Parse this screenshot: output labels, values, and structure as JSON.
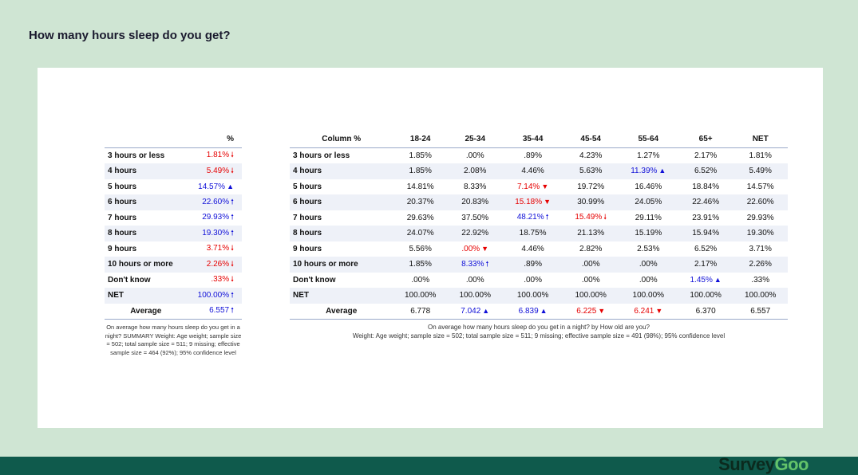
{
  "title": "How many hours sleep do you get?",
  "logo": {
    "part1": "Survey",
    "part2": "Goo"
  },
  "summary": {
    "col_header": "%",
    "rows": [
      {
        "label": "3 hours or less",
        "value": "1.81%",
        "dir": "down",
        "arrow": "long"
      },
      {
        "label": "4 hours",
        "value": "5.49%",
        "dir": "down",
        "arrow": "long"
      },
      {
        "label": "5 hours",
        "value": "14.57%",
        "dir": "up",
        "arrow": "small"
      },
      {
        "label": "6 hours",
        "value": "22.60%",
        "dir": "up",
        "arrow": "long"
      },
      {
        "label": "7 hours",
        "value": "29.93%",
        "dir": "up",
        "arrow": "long"
      },
      {
        "label": "8 hours",
        "value": "19.30%",
        "dir": "up",
        "arrow": "long"
      },
      {
        "label": "9 hours",
        "value": "3.71%",
        "dir": "down",
        "arrow": "long"
      },
      {
        "label": "10 hours or more",
        "value": "2.26%",
        "dir": "down",
        "arrow": "long"
      },
      {
        "label": "Don't know",
        "value": ".33%",
        "dir": "down",
        "arrow": "long"
      },
      {
        "label": "NET",
        "value": "100.00%",
        "dir": "up",
        "arrow": "long"
      }
    ],
    "average": {
      "label": "Average",
      "value": "6.557",
      "dir": "up",
      "arrow": "long"
    },
    "note": "On average how many hours sleep do you get in a night? SUMMARY Weight: Age weight; sample size = 502; total sample size = 511; 9 missing; effective sample size = 464 (92%); 95% confidence level"
  },
  "crosstab": {
    "corner": "Column %",
    "columns": [
      "18-24",
      "25-34",
      "35-44",
      "45-54",
      "55-64",
      "65+",
      "NET"
    ],
    "rows": [
      {
        "label": "3 hours or less",
        "cells": [
          {
            "v": "1.85%"
          },
          {
            "v": ".00%"
          },
          {
            "v": ".89%"
          },
          {
            "v": "4.23%"
          },
          {
            "v": "1.27%"
          },
          {
            "v": "2.17%"
          },
          {
            "v": "1.81%"
          }
        ]
      },
      {
        "label": "4 hours",
        "cells": [
          {
            "v": "1.85%"
          },
          {
            "v": "2.08%"
          },
          {
            "v": "4.46%"
          },
          {
            "v": "5.63%"
          },
          {
            "v": "11.39%",
            "dir": "up",
            "arrow": "small"
          },
          {
            "v": "6.52%"
          },
          {
            "v": "5.49%"
          }
        ]
      },
      {
        "label": "5 hours",
        "cells": [
          {
            "v": "14.81%"
          },
          {
            "v": "8.33%"
          },
          {
            "v": "7.14%",
            "dir": "down",
            "arrow": "small"
          },
          {
            "v": "19.72%"
          },
          {
            "v": "16.46%"
          },
          {
            "v": "18.84%"
          },
          {
            "v": "14.57%"
          }
        ]
      },
      {
        "label": "6 hours",
        "cells": [
          {
            "v": "20.37%"
          },
          {
            "v": "20.83%"
          },
          {
            "v": "15.18%",
            "dir": "down",
            "arrow": "small"
          },
          {
            "v": "30.99%"
          },
          {
            "v": "24.05%"
          },
          {
            "v": "22.46%"
          },
          {
            "v": "22.60%"
          }
        ]
      },
      {
        "label": "7 hours",
        "cells": [
          {
            "v": "29.63%"
          },
          {
            "v": "37.50%"
          },
          {
            "v": "48.21%",
            "dir": "up",
            "arrow": "long"
          },
          {
            "v": "15.49%",
            "dir": "down",
            "arrow": "long"
          },
          {
            "v": "29.11%"
          },
          {
            "v": "23.91%"
          },
          {
            "v": "29.93%"
          }
        ]
      },
      {
        "label": "8 hours",
        "cells": [
          {
            "v": "24.07%"
          },
          {
            "v": "22.92%"
          },
          {
            "v": "18.75%"
          },
          {
            "v": "21.13%"
          },
          {
            "v": "15.19%"
          },
          {
            "v": "15.94%"
          },
          {
            "v": "19.30%"
          }
        ]
      },
      {
        "label": "9 hours",
        "cells": [
          {
            "v": "5.56%"
          },
          {
            "v": ".00%",
            "dir": "down",
            "arrow": "small"
          },
          {
            "v": "4.46%"
          },
          {
            "v": "2.82%"
          },
          {
            "v": "2.53%"
          },
          {
            "v": "6.52%"
          },
          {
            "v": "3.71%"
          }
        ]
      },
      {
        "label": "10 hours or more",
        "cells": [
          {
            "v": "1.85%"
          },
          {
            "v": "8.33%",
            "dir": "up",
            "arrow": "long"
          },
          {
            "v": ".89%"
          },
          {
            "v": ".00%"
          },
          {
            "v": ".00%"
          },
          {
            "v": "2.17%"
          },
          {
            "v": "2.26%"
          }
        ]
      },
      {
        "label": "Don't know",
        "cells": [
          {
            "v": ".00%"
          },
          {
            "v": ".00%"
          },
          {
            "v": ".00%"
          },
          {
            "v": ".00%"
          },
          {
            "v": ".00%"
          },
          {
            "v": "1.45%",
            "dir": "up",
            "arrow": "small"
          },
          {
            "v": ".33%"
          }
        ]
      },
      {
        "label": "NET",
        "cells": [
          {
            "v": "100.00%"
          },
          {
            "v": "100.00%"
          },
          {
            "v": "100.00%"
          },
          {
            "v": "100.00%"
          },
          {
            "v": "100.00%"
          },
          {
            "v": "100.00%"
          },
          {
            "v": "100.00%"
          }
        ]
      }
    ],
    "average": {
      "label": "Average",
      "cells": [
        {
          "v": "6.778"
        },
        {
          "v": "7.042",
          "dir": "up",
          "arrow": "small"
        },
        {
          "v": "6.839",
          "dir": "up",
          "arrow": "small"
        },
        {
          "v": "6.225",
          "dir": "down",
          "arrow": "small"
        },
        {
          "v": "6.241",
          "dir": "down",
          "arrow": "small"
        },
        {
          "v": "6.370"
        },
        {
          "v": "6.557"
        }
      ]
    },
    "note_line1": "On average how many hours sleep do you get in a night? by How old are you?",
    "note_line2": "Weight: Age weight; sample size = 502; total sample size = 511; 9 missing; effective sample size = 491 (98%); 95% confidence level"
  },
  "colors": {
    "up": "#1010d8",
    "down": "#e60000",
    "background": "#cfe5d3",
    "footer": "#0f5a4c"
  }
}
